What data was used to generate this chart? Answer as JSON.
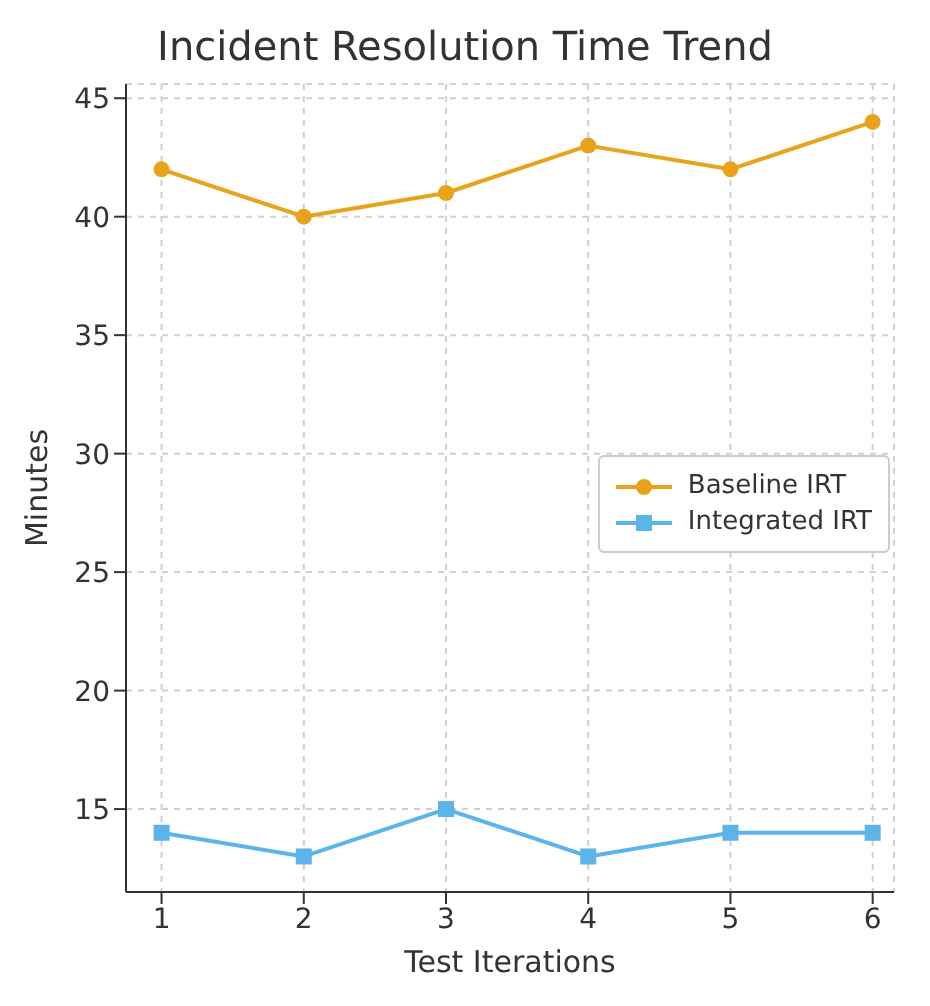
{
  "chart_data": {
    "type": "line",
    "title": "Incident Resolution Time Trend",
    "xlabel": "Test Iterations",
    "ylabel": "Minutes",
    "x": [
      1,
      2,
      3,
      4,
      5,
      6
    ],
    "series": [
      {
        "name": "Baseline IRT",
        "color": "#e8a31a",
        "values": [
          42,
          40,
          41,
          43,
          42,
          44
        ],
        "marker": "circle"
      },
      {
        "name": "Integrated IRT",
        "color": "#5bb5e9",
        "values": [
          14,
          13,
          15,
          13,
          14,
          14
        ],
        "marker": "square"
      }
    ],
    "xlim": [
      0.75,
      6.15
    ],
    "xticks": [
      1,
      2,
      3,
      4,
      5,
      6
    ],
    "ylim": [
      11.5,
      45.6
    ],
    "yticks": [
      15,
      20,
      25,
      30,
      35,
      40,
      45
    ],
    "grid": true,
    "legend": "right",
    "line_style": "solid"
  }
}
